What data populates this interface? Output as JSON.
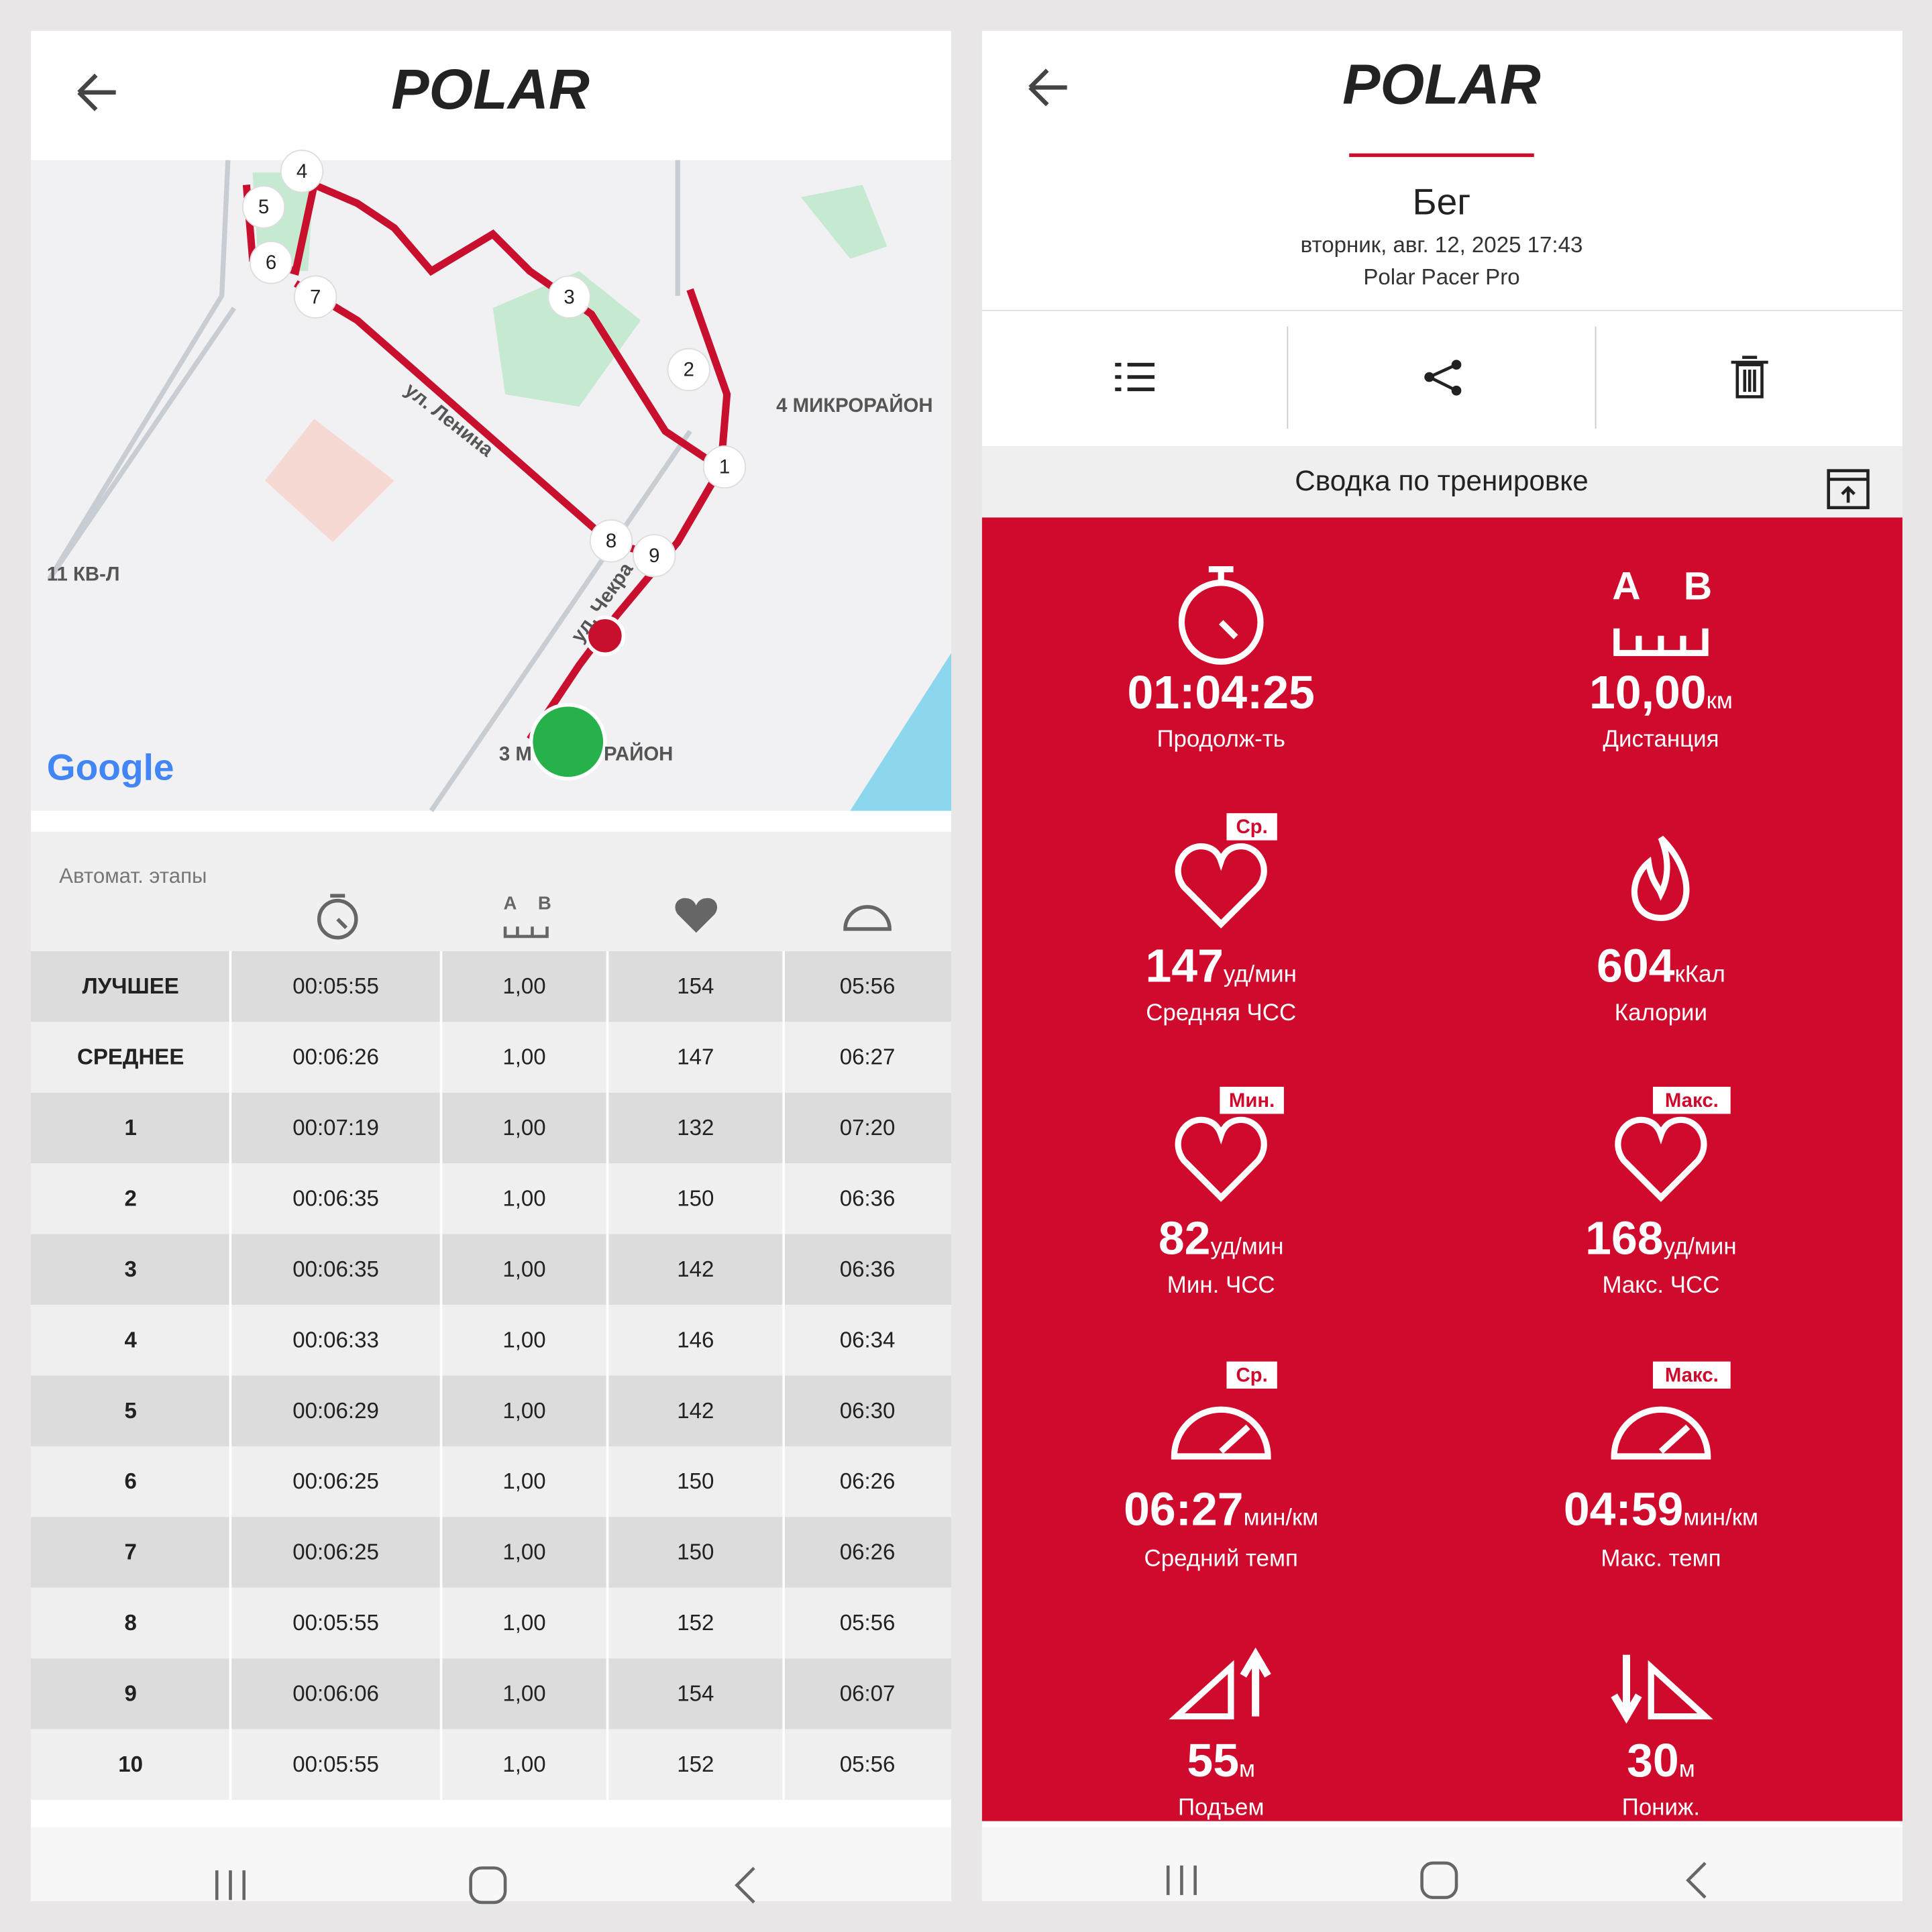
{
  "brand": "POLAR",
  "left": {
    "map": {
      "labels": [
        "4 МИКРОРАЙОН",
        "11 КВ-Л",
        "ул. Ленина",
        "ул. Чекра",
        "3 М",
        "РАЙОН"
      ],
      "markers": [
        "1",
        "2",
        "3",
        "4",
        "5",
        "6",
        "7",
        "8",
        "9"
      ],
      "logo": "Google"
    },
    "laps": {
      "title": "Автомат. этапы",
      "distance_icon": [
        "A",
        "B"
      ],
      "rows": [
        [
          "ЛУЧШЕЕ",
          "00:05:55",
          "1,00",
          "154",
          "05:56"
        ],
        [
          "СРЕДНЕЕ",
          "00:06:26",
          "1,00",
          "147",
          "06:27"
        ],
        [
          "1",
          "00:07:19",
          "1,00",
          "132",
          "07:20"
        ],
        [
          "2",
          "00:06:35",
          "1,00",
          "150",
          "06:36"
        ],
        [
          "3",
          "00:06:35",
          "1,00",
          "142",
          "06:36"
        ],
        [
          "4",
          "00:06:33",
          "1,00",
          "146",
          "06:34"
        ],
        [
          "5",
          "00:06:29",
          "1,00",
          "142",
          "06:30"
        ],
        [
          "6",
          "00:06:25",
          "1,00",
          "150",
          "06:26"
        ],
        [
          "7",
          "00:06:25",
          "1,00",
          "150",
          "06:26"
        ],
        [
          "8",
          "00:05:55",
          "1,00",
          "152",
          "05:56"
        ],
        [
          "9",
          "00:06:06",
          "1,00",
          "154",
          "06:07"
        ],
        [
          "10",
          "00:05:55",
          "1,00",
          "152",
          "05:56"
        ]
      ]
    }
  },
  "right": {
    "activity": "Бег",
    "datetime": "вторник, авг. 12, 2025 17:43",
    "device": "Polar Pacer Pro",
    "summary_title": "Сводка по тренировке",
    "stats": [
      {
        "value": "01:04:25",
        "label": "Продолж-ть"
      },
      {
        "value": "10,00",
        "unit": "км",
        "label": "Дистанция"
      },
      {
        "badge": "Ср.",
        "value": "147",
        "unit": "уд/мин",
        "label": "Средняя ЧСС"
      },
      {
        "value": "604",
        "unit": "кКал",
        "label": "Калории"
      },
      {
        "badge": "Мин.",
        "value": "82",
        "unit": "уд/мин",
        "label": "Мин. ЧСС"
      },
      {
        "badge": "Макс.",
        "value": "168",
        "unit": "уд/мин",
        "label": "Макс. ЧСС"
      },
      {
        "badge": "Ср.",
        "value": "06:27",
        "unit": "мин/км",
        "label": "Средний темп"
      },
      {
        "badge": "Макс.",
        "value": "04:59",
        "unit": "мин/км",
        "label": "Макс. темп"
      },
      {
        "value": "55",
        "unit": "м",
        "label": "Подъем"
      },
      {
        "value": "30",
        "unit": "м",
        "label": "Пониж."
      }
    ]
  }
}
